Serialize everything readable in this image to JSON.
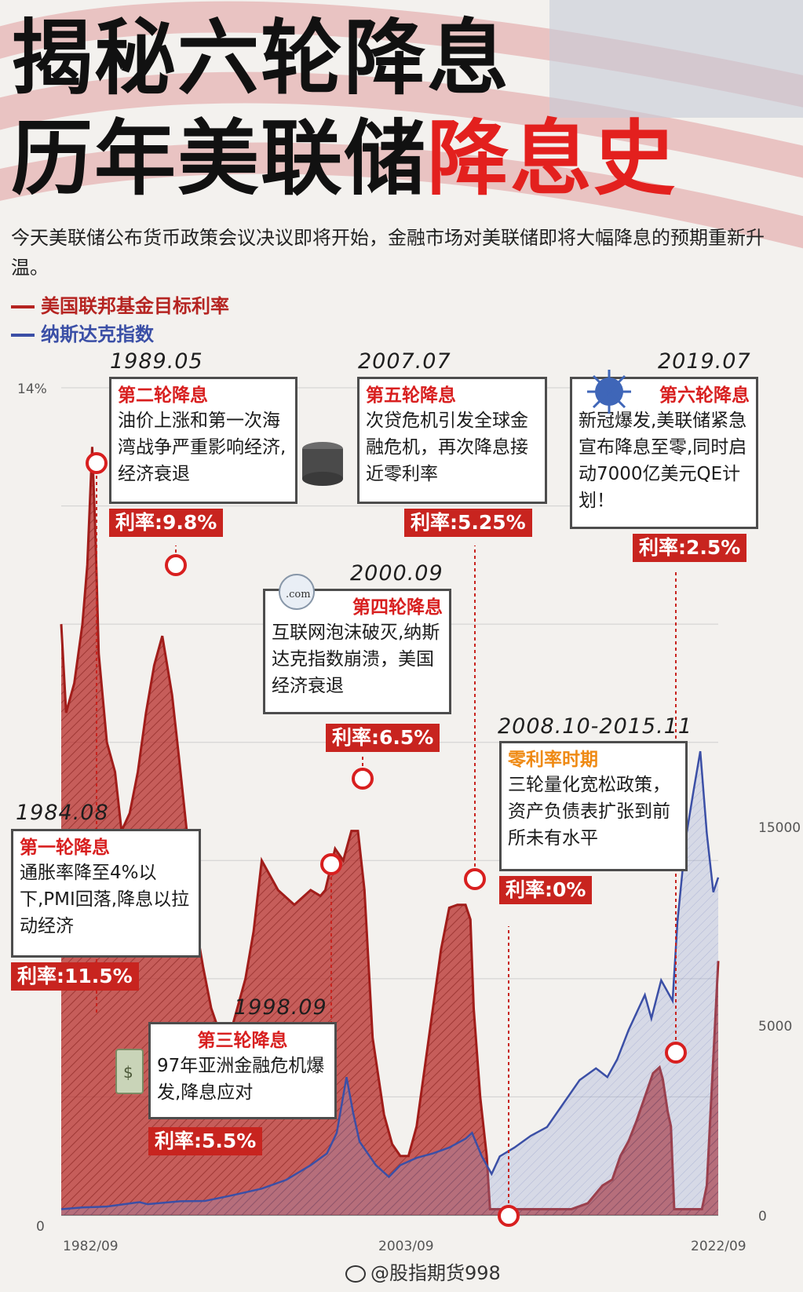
{
  "title_line1": "揭秘六轮降息",
  "title_line2_black": "历年美联储",
  "title_line2_red": "降息史",
  "intro": "今天美联储公布货币政策会议决议即将开始，金融市场对美联储即将大幅降息的预期重新升温。",
  "legend": {
    "rate": "美国联邦基金目标利率",
    "nasdaq": "纳斯达克指数"
  },
  "colors": {
    "rate": "#b52421",
    "nasdaq": "#3b4fa6",
    "accent": "#e3201e"
  },
  "chart_data": {
    "type": "line",
    "xlabel": "",
    "ylabel": "",
    "x_ticks": [
      "1982/09",
      "2003/09",
      "2022/09"
    ],
    "y_left_ticks": [
      "14%",
      "0"
    ],
    "y_right_ticks": [
      "15000",
      "5000",
      "0"
    ],
    "y_left_range": [
      0,
      14
    ],
    "y_right_range": [
      0,
      20000
    ],
    "series": [
      {
        "name": "美国联邦基金目标利率",
        "axis": "left",
        "x": [
          1982.7,
          1983.0,
          1983.5,
          1984.0,
          1984.3,
          1984.6,
          1984.8,
          1985.0,
          1985.5,
          1986.0,
          1986.4,
          1986.9,
          1987.4,
          1987.9,
          1988.4,
          1988.9,
          1989.2,
          1989.5,
          1989.9,
          1990.4,
          1990.9,
          1991.4,
          1991.9,
          1992.4,
          1993.0,
          1994.0,
          1994.5,
          1995.0,
          1995.5,
          1996.0,
          1997.0,
          1998.0,
          1998.6,
          1998.9,
          1999.5,
          2000.0,
          2000.5,
          2000.9,
          2001.3,
          2001.8,
          2002.5,
          2003.0,
          2003.5,
          2004.0,
          2004.5,
          2005.0,
          2005.5,
          2006.0,
          2006.5,
          2007.0,
          2007.5,
          2007.8,
          2008.0,
          2008.4,
          2008.8,
          2009.0,
          2010.0,
          2011.0,
          2012.0,
          2013.0,
          2014.0,
          2015.0,
          2015.9,
          2016.5,
          2017.0,
          2017.5,
          2018.0,
          2018.5,
          2019.0,
          2019.4,
          2019.6,
          2019.9,
          2020.1,
          2020.3,
          2021.0,
          2022.0,
          2022.3,
          2022.8,
          2023.0
        ],
        "values": [
          10.0,
          8.5,
          9.0,
          10.0,
          11.0,
          13.0,
          11.5,
          9.5,
          8.0,
          7.5,
          6.5,
          6.8,
          7.5,
          8.5,
          9.3,
          9.8,
          9.3,
          8.8,
          7.8,
          6.5,
          5.0,
          4.2,
          3.5,
          3.1,
          3.0,
          4.0,
          4.8,
          6.0,
          5.75,
          5.5,
          5.25,
          5.5,
          5.4,
          5.5,
          6.2,
          6.0,
          6.5,
          6.5,
          5.5,
          3.0,
          1.7,
          1.2,
          1.0,
          1.0,
          1.5,
          2.5,
          3.5,
          4.5,
          5.2,
          5.25,
          5.25,
          5.0,
          3.5,
          2.0,
          1.0,
          0.1,
          0.1,
          0.1,
          0.1,
          0.1,
          0.1,
          0.2,
          0.5,
          0.6,
          1.0,
          1.25,
          1.6,
          2.0,
          2.4,
          2.5,
          2.3,
          1.75,
          1.5,
          0.1,
          0.1,
          0.1,
          0.5,
          3.2,
          4.3
        ]
      },
      {
        "name": "纳斯达克指数",
        "axis": "right",
        "x": [
          1982.7,
          1984.0,
          1985.5,
          1987.5,
          1988.0,
          1990.0,
          1991.5,
          1993.0,
          1995.0,
          1996.5,
          1998.0,
          1999.0,
          1999.6,
          2000.2,
          2000.6,
          2001.0,
          2001.5,
          2002.0,
          2002.8,
          2003.5,
          2004.5,
          2005.5,
          2006.5,
          2007.5,
          2007.9,
          2008.5,
          2009.1,
          2009.6,
          2010.5,
          2011.5,
          2012.5,
          2013.5,
          2014.5,
          2015.5,
          2016.2,
          2016.8,
          2017.5,
          2018.5,
          2018.9,
          2019.5,
          2020.2,
          2020.5,
          2021.0,
          2021.5,
          2021.9,
          2022.3,
          2022.7,
          2023.0
        ],
        "values": [
          200,
          260,
          290,
          440,
          370,
          470,
          480,
          650,
          900,
          1200,
          1700,
          2100,
          2800,
          4700,
          3500,
          2500,
          2100,
          1700,
          1300,
          1700,
          1950,
          2100,
          2300,
          2600,
          2800,
          2000,
          1400,
          2000,
          2300,
          2700,
          3000,
          3800,
          4600,
          5000,
          4700,
          5300,
          6300,
          7500,
          6700,
          8000,
          7300,
          10000,
          12800,
          14500,
          15800,
          13000,
          11000,
          11500
        ]
      }
    ]
  },
  "events": [
    {
      "date": "1984.08",
      "title": "第一轮降息",
      "body": "通胀率降至4%以下,PMI回落,降息以拉动经济",
      "rate": "利率:11.5%"
    },
    {
      "date": "1989.05",
      "title": "第二轮降息",
      "body": "油价上涨和第一次海湾战争严重影响经济,经济衰退",
      "rate": "利率:9.8%"
    },
    {
      "date": "1998.09",
      "title": "第三轮降息",
      "body": "97年亚洲金融危机爆发,降息应对",
      "rate": "利率:5.5%"
    },
    {
      "date": "2000.09",
      "title": "第四轮降息",
      "body": "互联网泡沫破灭,纳斯达克指数崩溃，美国经济衰退",
      "rate": "利率:6.5%"
    },
    {
      "date": "2007.07",
      "title": "第五轮降息",
      "body": "次贷危机引发全球金融危机，再次降息接近零利率",
      "rate": "利率:5.25%"
    },
    {
      "date": "2008.10-2015.11",
      "title": "零利率时期",
      "body": "三轮量化宽松政策，资产负债表扩张到前所未有水平",
      "rate": "利率:0%"
    },
    {
      "date": "2019.07",
      "title": "第六轮降息",
      "body": "新冠爆发,美联储紧急宣布降息至零,同时启动7000亿美元QE计划！",
      "rate": "利率:2.5%"
    }
  ],
  "watermark": "@股指期货998"
}
